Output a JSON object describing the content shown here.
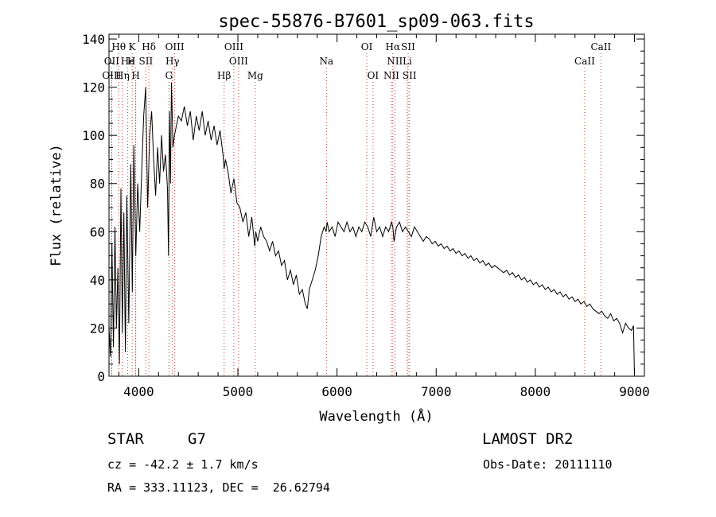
{
  "chart_data": {
    "type": "line",
    "title": "spec-55876-B7601_sp09-063.fits",
    "xlabel": "Wavelength (Å)",
    "ylabel": "Flux (relative)",
    "xlim": [
      3700,
      9100
    ],
    "ylim": [
      0,
      142
    ],
    "xticks": [
      4000,
      5000,
      6000,
      7000,
      8000,
      9000
    ],
    "yticks": [
      0,
      20,
      40,
      60,
      80,
      100,
      120,
      140
    ],
    "grid": false,
    "line_color": "#000000",
    "marker_color": "#cc3333",
    "spectrum": {
      "x": [
        3700,
        3715,
        3730,
        3745,
        3760,
        3775,
        3790,
        3805,
        3820,
        3835,
        3850,
        3865,
        3880,
        3900,
        3920,
        3935,
        3950,
        3970,
        3990,
        4010,
        4030,
        4050,
        4070,
        4090,
        4110,
        4130,
        4150,
        4170,
        4190,
        4210,
        4230,
        4250,
        4270,
        4290,
        4300,
        4310,
        4320,
        4330,
        4345,
        4360,
        4380,
        4400,
        4430,
        4460,
        4490,
        4520,
        4550,
        4580,
        4610,
        4640,
        4670,
        4700,
        4730,
        4760,
        4790,
        4820,
        4850,
        4861,
        4875,
        4900,
        4930,
        4960,
        4990,
        5020,
        5050,
        5080,
        5110,
        5140,
        5170,
        5180,
        5200,
        5230,
        5260,
        5290,
        5320,
        5350,
        5380,
        5410,
        5440,
        5470,
        5500,
        5530,
        5560,
        5590,
        5620,
        5650,
        5680,
        5700,
        5720,
        5750,
        5780,
        5810,
        5840,
        5870,
        5890,
        5900,
        5920,
        5950,
        5980,
        6010,
        6040,
        6070,
        6100,
        6130,
        6160,
        6190,
        6220,
        6250,
        6280,
        6310,
        6340,
        6370,
        6400,
        6430,
        6460,
        6490,
        6520,
        6550,
        6563,
        6575,
        6600,
        6630,
        6660,
        6690,
        6720,
        6750,
        6780,
        6810,
        6840,
        6870,
        6900,
        6930,
        6960,
        6990,
        7020,
        7050,
        7080,
        7110,
        7140,
        7170,
        7200,
        7230,
        7260,
        7290,
        7320,
        7350,
        7380,
        7410,
        7440,
        7470,
        7500,
        7530,
        7560,
        7590,
        7620,
        7650,
        7680,
        7710,
        7740,
        7770,
        7800,
        7830,
        7860,
        7890,
        7920,
        7950,
        7980,
        8010,
        8040,
        8070,
        8100,
        8130,
        8160,
        8190,
        8220,
        8250,
        8280,
        8310,
        8340,
        8370,
        8400,
        8430,
        8460,
        8490,
        8520,
        8550,
        8580,
        8610,
        8640,
        8670,
        8700,
        8730,
        8760,
        8790,
        8820,
        8850,
        8880,
        8910,
        8940,
        8970,
        8990,
        9000
      ],
      "y": [
        20,
        8,
        55,
        12,
        62,
        20,
        45,
        5,
        78,
        18,
        68,
        10,
        75,
        22,
        88,
        35,
        96,
        50,
        80,
        60,
        85,
        108,
        120,
        70,
        100,
        110,
        90,
        75,
        95,
        80,
        100,
        85,
        92,
        78,
        50,
        110,
        80,
        122,
        95,
        100,
        104,
        108,
        106,
        112,
        104,
        110,
        98,
        108,
        102,
        110,
        100,
        106,
        98,
        104,
        96,
        102,
        92,
        86,
        90,
        85,
        76,
        82,
        72,
        70,
        64,
        68,
        58,
        66,
        54,
        60,
        56,
        62,
        58,
        56,
        52,
        56,
        50,
        52,
        46,
        48,
        40,
        44,
        38,
        42,
        34,
        36,
        30,
        28,
        36,
        40,
        44,
        50,
        58,
        62,
        60,
        64,
        60,
        62,
        58,
        64,
        62,
        60,
        64,
        60,
        62,
        58,
        62,
        60,
        64,
        62,
        58,
        66,
        60,
        62,
        58,
        62,
        60,
        64,
        62,
        56,
        62,
        64,
        60,
        62,
        60,
        58,
        62,
        60,
        58,
        56,
        58,
        57,
        55,
        56,
        54,
        55,
        53,
        54,
        52,
        53,
        51,
        52,
        50,
        51,
        49,
        50,
        48,
        49,
        47,
        48,
        46,
        47,
        45,
        46,
        45,
        44,
        43,
        44,
        42,
        43,
        41,
        42,
        40,
        41,
        39,
        40,
        38,
        39,
        37,
        38,
        36,
        37,
        35,
        36,
        34,
        35,
        33,
        34,
        32,
        33,
        31,
        32,
        30,
        31,
        29,
        30,
        28,
        27,
        26,
        27,
        25,
        24,
        26,
        23,
        24,
        22,
        18,
        22,
        20,
        19,
        21,
        0
      ]
    },
    "lines": [
      {
        "label": "Hθ",
        "x": 3798,
        "row": 0,
        "align": "middle"
      },
      {
        "label": "K",
        "x": 3934,
        "row": 0,
        "align": "middle"
      },
      {
        "label": "Hδ",
        "x": 4102,
        "row": 0,
        "align": "middle"
      },
      {
        "label": "OIII",
        "x": 4363,
        "row": 0,
        "align": "middle"
      },
      {
        "label": "OIII",
        "x": 4959,
        "row": 0,
        "align": "middle"
      },
      {
        "label": "OI",
        "x": 6300,
        "row": 0,
        "align": "middle"
      },
      {
        "label": "Hα",
        "x": 6563,
        "row": 0,
        "align": "middle"
      },
      {
        "label": "SII",
        "x": 6717,
        "row": 0,
        "align": "middle"
      },
      {
        "label": "CaII",
        "x": 8662,
        "row": 0,
        "align": "middle"
      },
      {
        "label": "OII",
        "x": 3727,
        "row": 1,
        "align": "middle"
      },
      {
        "label": "He",
        "x": 3889,
        "row": 1,
        "align": "middle"
      },
      {
        "label": "H",
        "x": 3968,
        "row": 1,
        "align": "end"
      },
      {
        "label": "SII",
        "x": 4072,
        "row": 1,
        "align": "middle"
      },
      {
        "label": "Hγ",
        "x": 4340,
        "row": 1,
        "align": "middle"
      },
      {
        "label": "OIII",
        "x": 5007,
        "row": 1,
        "align": "middle"
      },
      {
        "label": "Na",
        "x": 5893,
        "row": 1,
        "align": "middle"
      },
      {
        "label": "NII",
        "x": 6583,
        "row": 1,
        "align": "middle"
      },
      {
        "label": "Li",
        "x": 6708,
        "row": 1,
        "align": "middle"
      },
      {
        "label": "CaII",
        "x": 8498,
        "row": 1,
        "align": "middle"
      },
      {
        "label": "OIII",
        "x": 3727,
        "row": 2,
        "align": "middle"
      },
      {
        "label": "Hη",
        "x": 3835,
        "row": 2,
        "align": "middle"
      },
      {
        "label": "H",
        "x": 3970,
        "row": 2,
        "align": "middle"
      },
      {
        "label": "G",
        "x": 4305,
        "row": 2,
        "align": "middle"
      },
      {
        "label": "Hβ",
        "x": 4861,
        "row": 2,
        "align": "middle"
      },
      {
        "label": "Mg",
        "x": 5175,
        "row": 2,
        "align": "middle"
      },
      {
        "label": "OI",
        "x": 6363,
        "row": 2,
        "align": "middle"
      },
      {
        "label": "NII",
        "x": 6548,
        "row": 2,
        "align": "middle"
      },
      {
        "label": "SII",
        "x": 6731,
        "row": 2,
        "align": "middle"
      }
    ]
  },
  "info": {
    "object_class": "STAR",
    "subclass": "G7",
    "survey": "LAMOST DR2",
    "redshift": "cz = -42.2 ± 1.7 km/s",
    "obs_date": "Obs-Date: 20111110",
    "coords": "RA = 333.11123, DEC =  26.62794"
  }
}
